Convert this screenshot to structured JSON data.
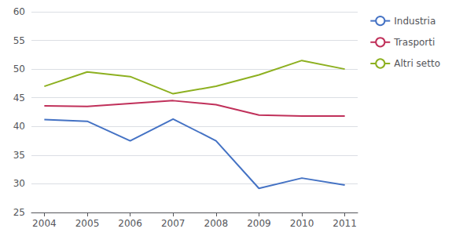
{
  "chart_data": {
    "type": "line",
    "x": [
      2004,
      2005,
      2006,
      2007,
      2008,
      2009,
      2010,
      2011
    ],
    "series": [
      {
        "name": "Industria",
        "color": "#4472c4",
        "values": [
          41.2,
          40.9,
          37.5,
          41.3,
          37.5,
          29.2,
          31.0,
          29.8
        ]
      },
      {
        "name": "Trasporti",
        "color": "#c0305a",
        "values": [
          43.6,
          43.5,
          44.0,
          44.5,
          43.8,
          42.0,
          41.8,
          41.8
        ]
      },
      {
        "name": "Altri setto",
        "color": "#8db020",
        "values": [
          47.0,
          49.5,
          48.7,
          45.7,
          47.0,
          49.0,
          51.5,
          50.0
        ]
      }
    ],
    "xlim": [
      2003.7,
      2011.3
    ],
    "xticks": [
      2004,
      2005,
      2006,
      2007,
      2008,
      2009,
      2010,
      2011
    ],
    "ylim": [
      25,
      60
    ],
    "yticks": [
      25,
      30,
      35,
      40,
      45,
      50,
      55,
      60
    ],
    "grid": true,
    "legend": "right"
  }
}
